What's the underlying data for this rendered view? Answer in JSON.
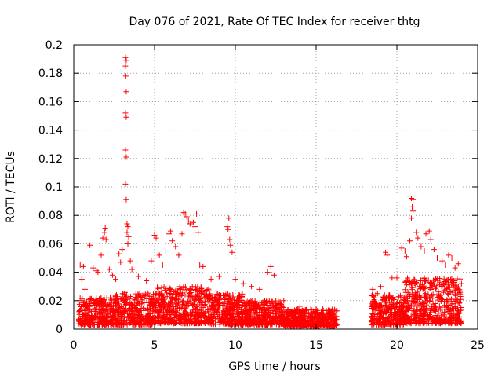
{
  "chart_data": {
    "type": "scatter",
    "title": "Day 076 of 2021, Rate Of TEC Index for receiver thtg",
    "xlabel": "GPS time / hours",
    "ylabel": "ROTI / TECUs",
    "xlim": [
      0,
      25
    ],
    "ylim": [
      0,
      0.2
    ],
    "xticks": [
      0,
      5,
      10,
      15,
      20,
      25
    ],
    "xtick_labels": [
      "0",
      "5",
      "10",
      "15",
      "20",
      "25"
    ],
    "yticks": [
      0,
      0.02,
      0.04,
      0.06,
      0.08,
      0.1,
      0.12,
      0.14,
      0.16,
      0.18,
      0.2
    ],
    "ytick_labels": [
      "0",
      "0.02",
      "0.04",
      "0.06",
      "0.08",
      "0.1",
      "0.12",
      "0.14",
      "0.16",
      "0.18",
      "0.2"
    ],
    "grid": true,
    "marker": "+",
    "color": "#ff0000",
    "data_gap_hours": [
      16.3,
      18.4
    ],
    "series": [
      {
        "name": "ROTI",
        "points": [
          [
            0.4,
            0.045
          ],
          [
            0.6,
            0.044
          ],
          [
            0.5,
            0.035
          ],
          [
            0.7,
            0.028
          ],
          [
            1.0,
            0.059
          ],
          [
            1.2,
            0.043
          ],
          [
            1.4,
            0.041
          ],
          [
            1.5,
            0.04
          ],
          [
            1.7,
            0.052
          ],
          [
            1.8,
            0.064
          ],
          [
            1.9,
            0.068
          ],
          [
            1.95,
            0.071
          ],
          [
            2.0,
            0.063
          ],
          [
            2.2,
            0.042
          ],
          [
            2.4,
            0.038
          ],
          [
            2.6,
            0.035
          ],
          [
            2.8,
            0.053
          ],
          [
            2.9,
            0.047
          ],
          [
            3.0,
            0.056
          ],
          [
            3.2,
            0.191
          ],
          [
            3.25,
            0.189
          ],
          [
            3.2,
            0.185
          ],
          [
            3.22,
            0.178
          ],
          [
            3.25,
            0.167
          ],
          [
            3.2,
            0.152
          ],
          [
            3.25,
            0.149
          ],
          [
            3.2,
            0.126
          ],
          [
            3.25,
            0.121
          ],
          [
            3.2,
            0.102
          ],
          [
            3.25,
            0.091
          ],
          [
            3.3,
            0.074
          ],
          [
            3.35,
            0.072
          ],
          [
            3.3,
            0.068
          ],
          [
            3.4,
            0.065
          ],
          [
            3.35,
            0.06
          ],
          [
            3.5,
            0.048
          ],
          [
            3.6,
            0.042
          ],
          [
            4.0,
            0.037
          ],
          [
            4.5,
            0.034
          ],
          [
            4.8,
            0.048
          ],
          [
            5.0,
            0.066
          ],
          [
            5.1,
            0.064
          ],
          [
            5.3,
            0.052
          ],
          [
            5.5,
            0.045
          ],
          [
            5.7,
            0.055
          ],
          [
            5.9,
            0.067
          ],
          [
            6.0,
            0.069
          ],
          [
            6.1,
            0.062
          ],
          [
            6.3,
            0.058
          ],
          [
            6.5,
            0.052
          ],
          [
            6.7,
            0.067
          ],
          [
            6.8,
            0.082
          ],
          [
            6.9,
            0.081
          ],
          [
            7.0,
            0.079
          ],
          [
            7.1,
            0.076
          ],
          [
            7.2,
            0.074
          ],
          [
            7.4,
            0.075
          ],
          [
            7.5,
            0.072
          ],
          [
            7.6,
            0.081
          ],
          [
            7.7,
            0.068
          ],
          [
            7.8,
            0.045
          ],
          [
            8.0,
            0.044
          ],
          [
            8.5,
            0.035
          ],
          [
            9.0,
            0.037
          ],
          [
            9.5,
            0.072
          ],
          [
            9.55,
            0.07
          ],
          [
            9.6,
            0.078
          ],
          [
            9.65,
            0.063
          ],
          [
            9.7,
            0.059
          ],
          [
            9.8,
            0.054
          ],
          [
            10.0,
            0.035
          ],
          [
            10.5,
            0.032
          ],
          [
            11.0,
            0.03
          ],
          [
            11.5,
            0.028
          ],
          [
            12.0,
            0.04
          ],
          [
            12.2,
            0.044
          ],
          [
            12.4,
            0.038
          ],
          [
            13.0,
            0.02
          ],
          [
            14.0,
            0.016
          ],
          [
            15.0,
            0.014
          ],
          [
            16.0,
            0.012
          ],
          [
            16.2,
            0.009
          ],
          [
            18.5,
            0.028
          ],
          [
            18.8,
            0.025
          ],
          [
            19.0,
            0.03
          ],
          [
            19.3,
            0.054
          ],
          [
            19.4,
            0.052
          ],
          [
            19.7,
            0.036
          ],
          [
            20.0,
            0.036
          ],
          [
            20.3,
            0.057
          ],
          [
            20.5,
            0.055
          ],
          [
            20.6,
            0.051
          ],
          [
            20.8,
            0.062
          ],
          [
            20.9,
            0.092
          ],
          [
            21.0,
            0.091
          ],
          [
            20.95,
            0.086
          ],
          [
            21.0,
            0.083
          ],
          [
            20.9,
            0.078
          ],
          [
            21.2,
            0.068
          ],
          [
            21.3,
            0.064
          ],
          [
            21.5,
            0.058
          ],
          [
            21.7,
            0.055
          ],
          [
            21.8,
            0.067
          ],
          [
            22.0,
            0.069
          ],
          [
            22.1,
            0.063
          ],
          [
            22.3,
            0.056
          ],
          [
            22.5,
            0.05
          ],
          [
            22.8,
            0.048
          ],
          [
            23.0,
            0.045
          ],
          [
            23.2,
            0.052
          ],
          [
            23.4,
            0.05
          ],
          [
            23.6,
            0.043
          ],
          [
            23.8,
            0.046
          ],
          [
            24.0,
            0.032
          ]
        ]
      }
    ],
    "density_bands": [
      {
        "x_start": 0.3,
        "x_end": 2.5,
        "y_low": 0.003,
        "y_high": 0.022
      },
      {
        "x_start": 2.5,
        "x_end": 5.0,
        "y_low": 0.003,
        "y_high": 0.026
      },
      {
        "x_start": 5.0,
        "x_end": 8.5,
        "y_low": 0.004,
        "y_high": 0.03
      },
      {
        "x_start": 8.5,
        "x_end": 10.5,
        "y_low": 0.003,
        "y_high": 0.025
      },
      {
        "x_start": 10.5,
        "x_end": 13.0,
        "y_low": 0.003,
        "y_high": 0.02
      },
      {
        "x_start": 13.0,
        "x_end": 16.3,
        "y_low": 0.002,
        "y_high": 0.014
      },
      {
        "x_start": 18.4,
        "x_end": 20.5,
        "y_low": 0.003,
        "y_high": 0.024
      },
      {
        "x_start": 20.5,
        "x_end": 24.0,
        "y_low": 0.004,
        "y_high": 0.036
      }
    ]
  }
}
